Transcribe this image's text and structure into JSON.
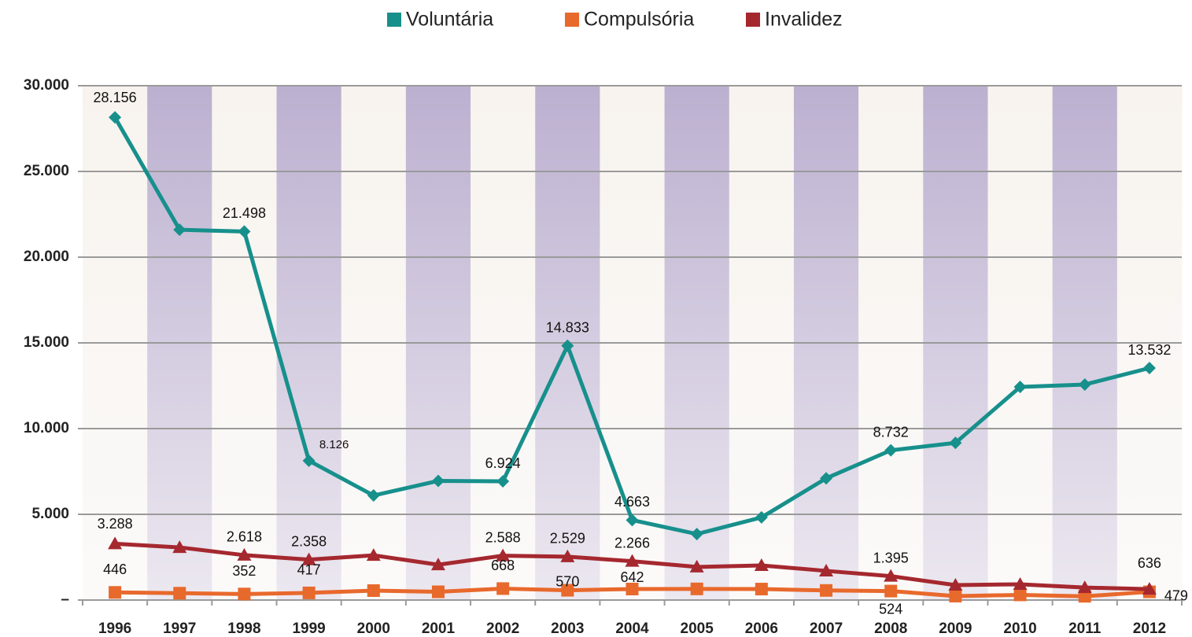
{
  "chart_data": {
    "type": "line",
    "categories": [
      "1996",
      "1997",
      "1998",
      "1999",
      "2000",
      "2001",
      "2002",
      "2003",
      "2004",
      "2005",
      "2006",
      "2007",
      "2008",
      "2009",
      "2010",
      "2011",
      "2012"
    ],
    "series": [
      {
        "name": "Voluntária",
        "color": "#17908c",
        "marker": "diamond",
        "values": [
          28156,
          21600,
          21498,
          8126,
          6100,
          6950,
          6924,
          14833,
          4663,
          3850,
          4820,
          7100,
          8732,
          9170,
          12430,
          12570,
          13532
        ],
        "value_labels": [
          "28.156",
          null,
          "21.498",
          "8.126",
          null,
          null,
          "6.924",
          "14.833",
          "4.663",
          null,
          null,
          null,
          "8.732",
          null,
          null,
          null,
          "13.532"
        ]
      },
      {
        "name": "Compulsória",
        "color": "#e8692c",
        "marker": "square",
        "values": [
          446,
          400,
          352,
          417,
          550,
          480,
          668,
          570,
          642,
          650,
          640,
          560,
          524,
          230,
          300,
          220,
          479
        ],
        "value_labels": [
          "446",
          null,
          "352",
          "417",
          null,
          null,
          "668",
          "570",
          "642",
          null,
          null,
          null,
          "524",
          null,
          null,
          null,
          "479"
        ]
      },
      {
        "name": "Invalidez",
        "color": "#a5282f",
        "marker": "triangle",
        "values": [
          3288,
          3070,
          2618,
          2358,
          2610,
          2060,
          2588,
          2529,
          2266,
          1930,
          2020,
          1700,
          1395,
          870,
          920,
          730,
          636
        ],
        "value_labels": [
          "3.288",
          null,
          "2.618",
          "2.358",
          null,
          null,
          "2.588",
          "2.529",
          "2.266",
          null,
          null,
          null,
          "1.395",
          null,
          null,
          null,
          "636"
        ]
      }
    ],
    "ylim": [
      0,
      30000
    ],
    "yticks": [
      {
        "value": 0,
        "label": "–"
      },
      {
        "value": 5000,
        "label": "5.000"
      },
      {
        "value": 10000,
        "label": "10.000"
      },
      {
        "value": 15000,
        "label": "15.000"
      },
      {
        "value": 20000,
        "label": "20.000"
      },
      {
        "value": 25000,
        "label": "25.000"
      },
      {
        "value": 30000,
        "label": "30.000"
      }
    ],
    "grid": true,
    "legend": "top"
  }
}
